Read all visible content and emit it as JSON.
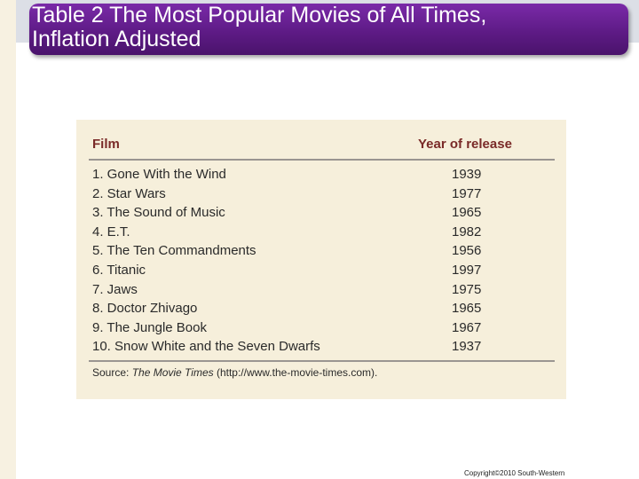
{
  "title": "Table 2 The Most Popular Movies of All Times,\nInflation Adjusted",
  "table": {
    "headers": {
      "film": "Film",
      "year": "Year of release"
    },
    "rows": [
      {
        "film": "1. Gone With the Wind",
        "year": "1939"
      },
      {
        "film": "2. Star Wars",
        "year": "1977"
      },
      {
        "film": "3. The Sound of Music",
        "year": "1965"
      },
      {
        "film": "4. E.T.",
        "year": "1982"
      },
      {
        "film": "5. The Ten Commandments",
        "year": "1956"
      },
      {
        "film": "6. Titanic",
        "year": "1997"
      },
      {
        "film": "7. Jaws",
        "year": "1975"
      },
      {
        "film": "8. Doctor Zhivago",
        "year": "1965"
      },
      {
        "film": "9. The Jungle Book",
        "year": "1967"
      },
      {
        "film": "10. Snow White and the Seven Dwarfs",
        "year": "1937"
      }
    ],
    "source": {
      "prefix": "Source: ",
      "publication": "The Movie Times",
      "suffix": " (http://www.the-movie-times.com)."
    }
  },
  "copyright": "Copyright©2010  South-Western",
  "colors": {
    "banner": "#5e1b86",
    "header_text": "#7a2a28",
    "panel": "#f6efdb"
  }
}
